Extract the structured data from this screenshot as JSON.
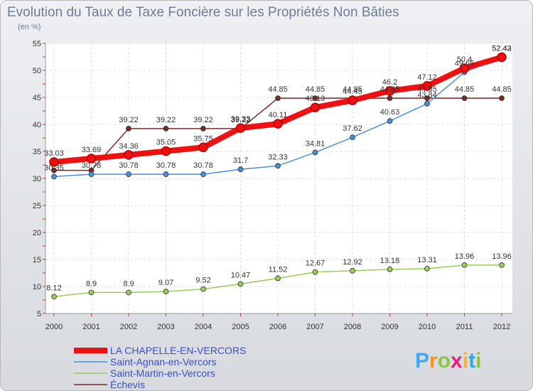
{
  "chart_data": {
    "type": "line",
    "title": "Evolution du Taux de Taxe Foncière sur les Propriétés Non Bâties",
    "subtitle": "(en %)",
    "categories": [
      "2000",
      "2001",
      "2002",
      "2003",
      "2004",
      "2005",
      "2006",
      "2007",
      "2008",
      "2009",
      "2010",
      "2011",
      "2012"
    ],
    "ylim": [
      5,
      55
    ],
    "yticks": [
      5,
      10,
      15,
      20,
      25,
      30,
      35,
      40,
      45,
      50,
      55
    ],
    "grid": true,
    "legend_position": "bottom-left",
    "series": [
      {
        "name": "Échevis",
        "color": "#7a2a2a",
        "values": [
          31.5,
          31.5,
          39.22,
          39.22,
          39.22,
          39.22,
          44.85,
          44.85,
          44.85,
          44.85,
          44.85,
          44.85,
          44.85
        ],
        "labels": [
          "",
          "",
          "39.22",
          "39.22",
          "39.22",
          "39.22",
          "44.85",
          "44.85",
          "44.85",
          "44.85",
          "44.85",
          "44.85",
          "44.85"
        ]
      },
      {
        "name": "Saint-Agnan-en-Vercors",
        "color": "#4a90d9",
        "values": [
          30.35,
          30.78,
          30.78,
          30.78,
          30.78,
          31.7,
          32.33,
          34.81,
          37.62,
          40.63,
          43.84,
          49.65,
          52.42
        ],
        "labels": [
          "30.35",
          "30.78",
          "30.78",
          "30.78",
          "30.78",
          "31.7",
          "32.33",
          "34.81",
          "37.62",
          "40.63",
          "43.84",
          "49.65",
          "52.42"
        ]
      },
      {
        "name": "Saint-Martin-en-Vercors",
        "color": "#9acd5a",
        "values": [
          8.12,
          8.9,
          8.9,
          9.07,
          9.52,
          10.47,
          11.52,
          12.67,
          12.92,
          13.18,
          13.31,
          13.96,
          13.96
        ],
        "labels": [
          "8.12",
          "8.9",
          "8.9",
          "9.07",
          "9.52",
          "10.47",
          "11.52",
          "12.67",
          "12.92",
          "13.18",
          "13.31",
          "13.96",
          "13.96"
        ]
      },
      {
        "name": "LA CHAPELLE-EN-VERCORS",
        "color": "#ee1111",
        "values": [
          33.03,
          33.69,
          34.36,
          35.05,
          35.75,
          39.33,
          40.11,
          43.13,
          44.45,
          46.2,
          47.12,
          50.4,
          52.43
        ],
        "labels": [
          "33.03",
          "33.69",
          "34.36",
          "35.05",
          "35.75",
          "39.33",
          "40.11",
          "43.13",
          "44.45",
          "46.2",
          "47.12",
          "50.4",
          "52.43"
        ]
      }
    ]
  },
  "legend": {
    "items": [
      {
        "label": "LA CHAPELLE-EN-VERCORS",
        "color": "#ee1111",
        "thick": true
      },
      {
        "label": "Saint-Agnan-en-Vercors",
        "color": "#4a90d9",
        "thick": false
      },
      {
        "label": "Saint-Martin-en-Vercors",
        "color": "#9acd5a",
        "thick": false
      },
      {
        "label": "Échevis",
        "color": "#7a2a2a",
        "thick": false
      }
    ]
  },
  "logo": {
    "letters": [
      "P",
      "r",
      "o",
      "x",
      "i",
      "t",
      "i"
    ],
    "colors": [
      "#3fa9f5",
      "#f7931e",
      "#8cc63f",
      "#ed1e79",
      "#fbb03b",
      "#29abe2",
      "#8cc63f"
    ]
  }
}
